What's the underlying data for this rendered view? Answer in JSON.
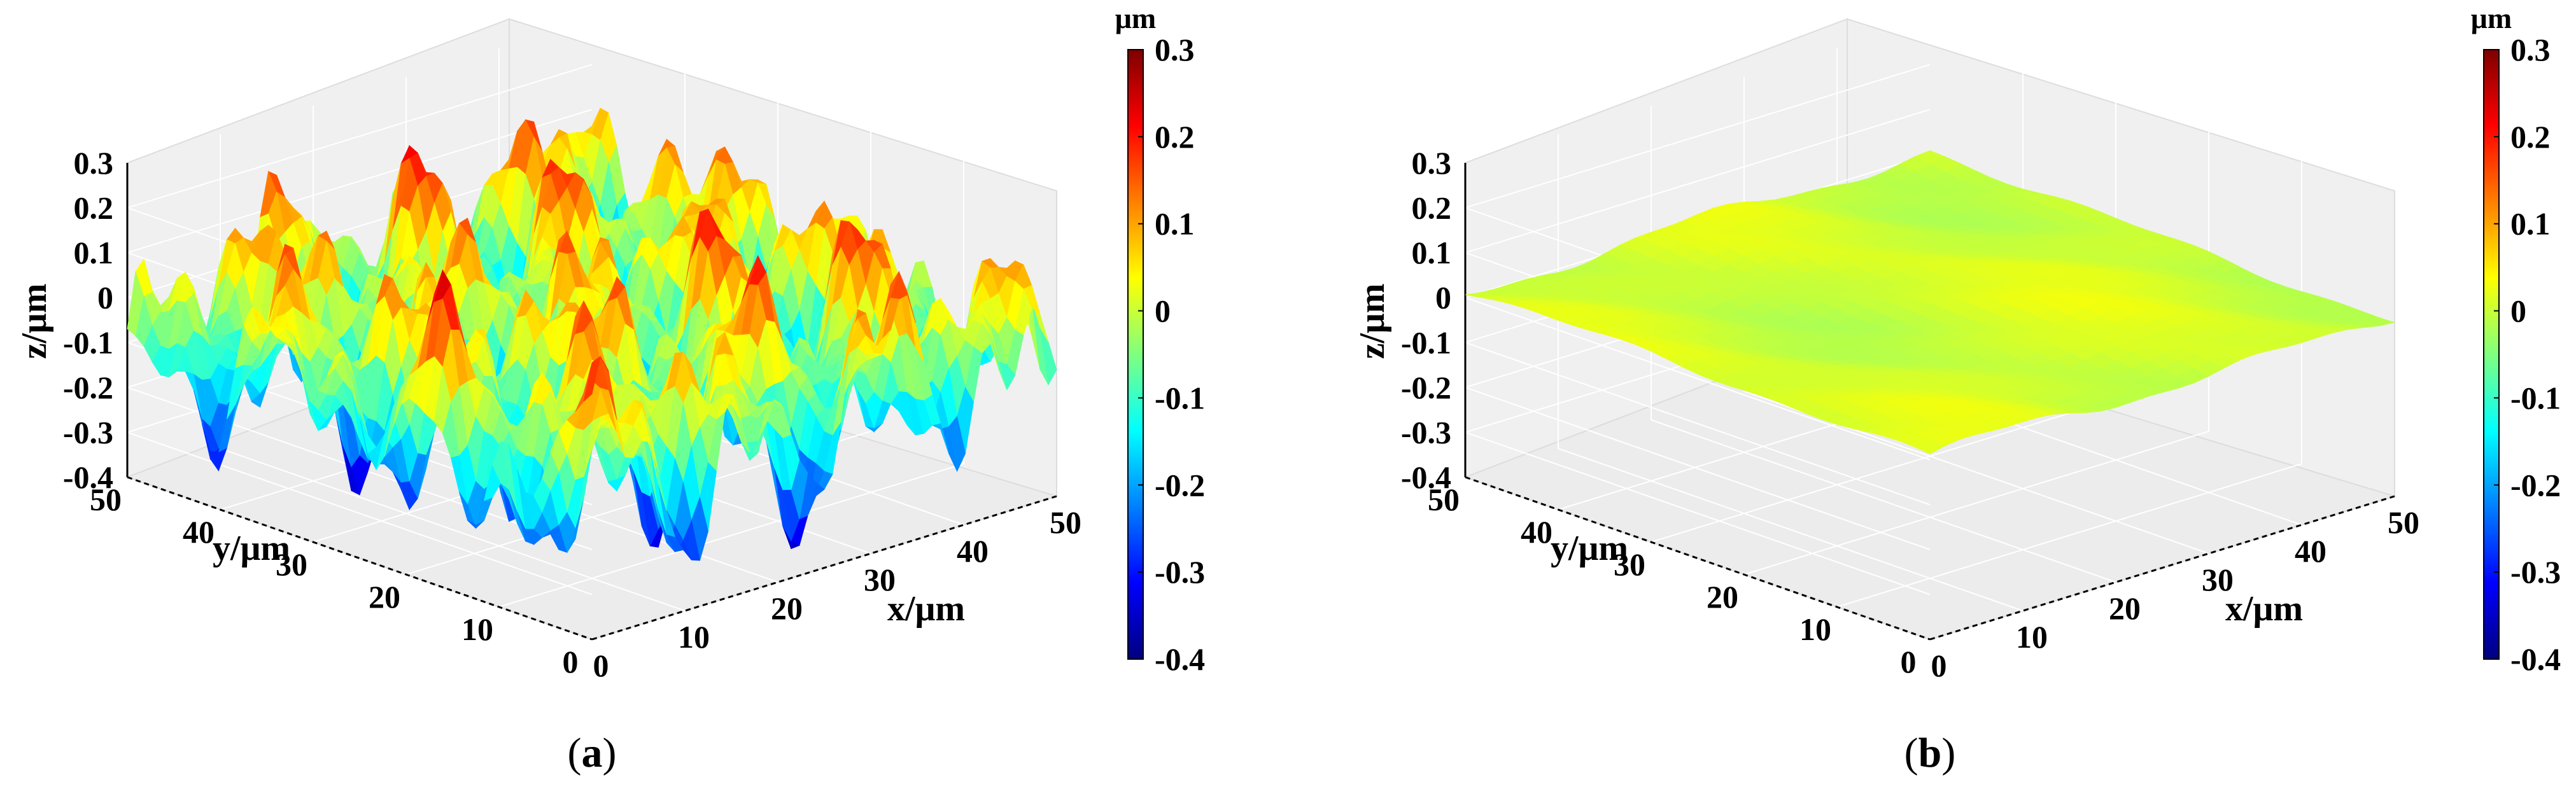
{
  "panels": [
    {
      "caption_letter": "a",
      "chart_data": {
        "type": "surface",
        "xlabel": "x/μm",
        "ylabel": "y/μm",
        "zlabel": "z/μm",
        "xlim": [
          0,
          50
        ],
        "ylim": [
          0,
          50
        ],
        "zlim": [
          -0.4,
          0.3
        ],
        "x_ticks": [
          "0",
          "10",
          "20",
          "30",
          "40",
          "50"
        ],
        "y_ticks": [
          "0",
          "10",
          "20",
          "30",
          "40",
          "50"
        ],
        "z_ticks": [
          "0.3",
          "0.2",
          "0.1",
          "0",
          "-0.1",
          "-0.2",
          "-0.3",
          "-0.4"
        ],
        "colorbar": {
          "unit": "μm",
          "range": [
            -0.4,
            0.3
          ],
          "ticks": [
            "0.3",
            "0.2",
            "0.1",
            "0",
            "-0.1",
            "-0.2",
            "-0.3",
            "-0.4"
          ],
          "colormap": "jet"
        },
        "grid": true,
        "surface_z_range": [
          -0.38,
          0.27
        ],
        "surface_rms": 0.12
      }
    },
    {
      "caption_letter": "b",
      "chart_data": {
        "type": "surface",
        "xlabel": "x/μm",
        "ylabel": "y/μm",
        "zlabel": "z/μm",
        "xlim": [
          0,
          50
        ],
        "ylim": [
          0,
          50
        ],
        "zlim": [
          -0.4,
          0.3
        ],
        "x_ticks": [
          "0",
          "10",
          "20",
          "30",
          "40",
          "50"
        ],
        "y_ticks": [
          "0",
          "10",
          "20",
          "30",
          "40",
          "50"
        ],
        "z_ticks": [
          "0.3",
          "0.2",
          "0.1",
          "0",
          "-0.1",
          "-0.2",
          "-0.3",
          "-0.4"
        ],
        "colorbar": {
          "unit": "μm",
          "range": [
            -0.4,
            0.3
          ],
          "ticks": [
            "0.3",
            "0.2",
            "0.1",
            "0",
            "-0.1",
            "-0.2",
            "-0.3",
            "-0.4"
          ],
          "colormap": "jet"
        },
        "grid": true,
        "surface_z_range": [
          -0.02,
          0.03
        ],
        "surface_rms": 0.012
      }
    }
  ]
}
